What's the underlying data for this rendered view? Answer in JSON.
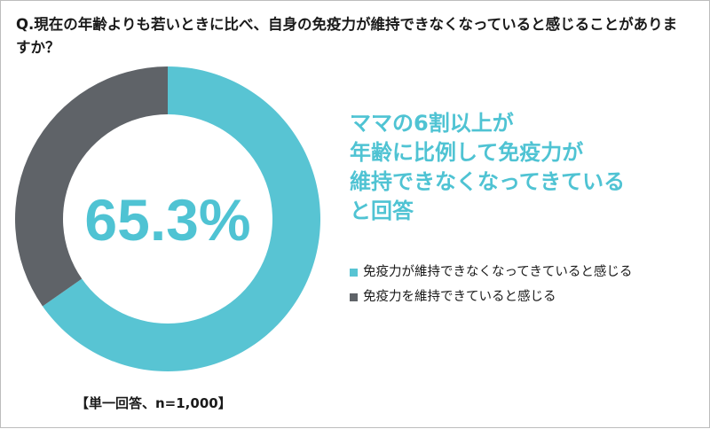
{
  "question": "Q.現在の年齢よりも若いときに比べ、自身の免疫力が維持できなくなっていると感じることがありますか？",
  "headline": [
    "ママの6割以上が",
    "年齢に比例して免疫力が",
    "維持できなくなってきている",
    "と回答"
  ],
  "sample_note": "【単一回答、n=1,000】",
  "chart_data": {
    "type": "pie",
    "donut": true,
    "center_label": "65.3%",
    "slices": [
      {
        "label": "免疫力が維持できなくなってきていると感じる",
        "value": 65.3,
        "color": "#58c4d3"
      },
      {
        "label": "免疫力を維持できていると感じる",
        "value": 34.7,
        "color": "#5f6368"
      }
    ],
    "legend_position": "right"
  }
}
